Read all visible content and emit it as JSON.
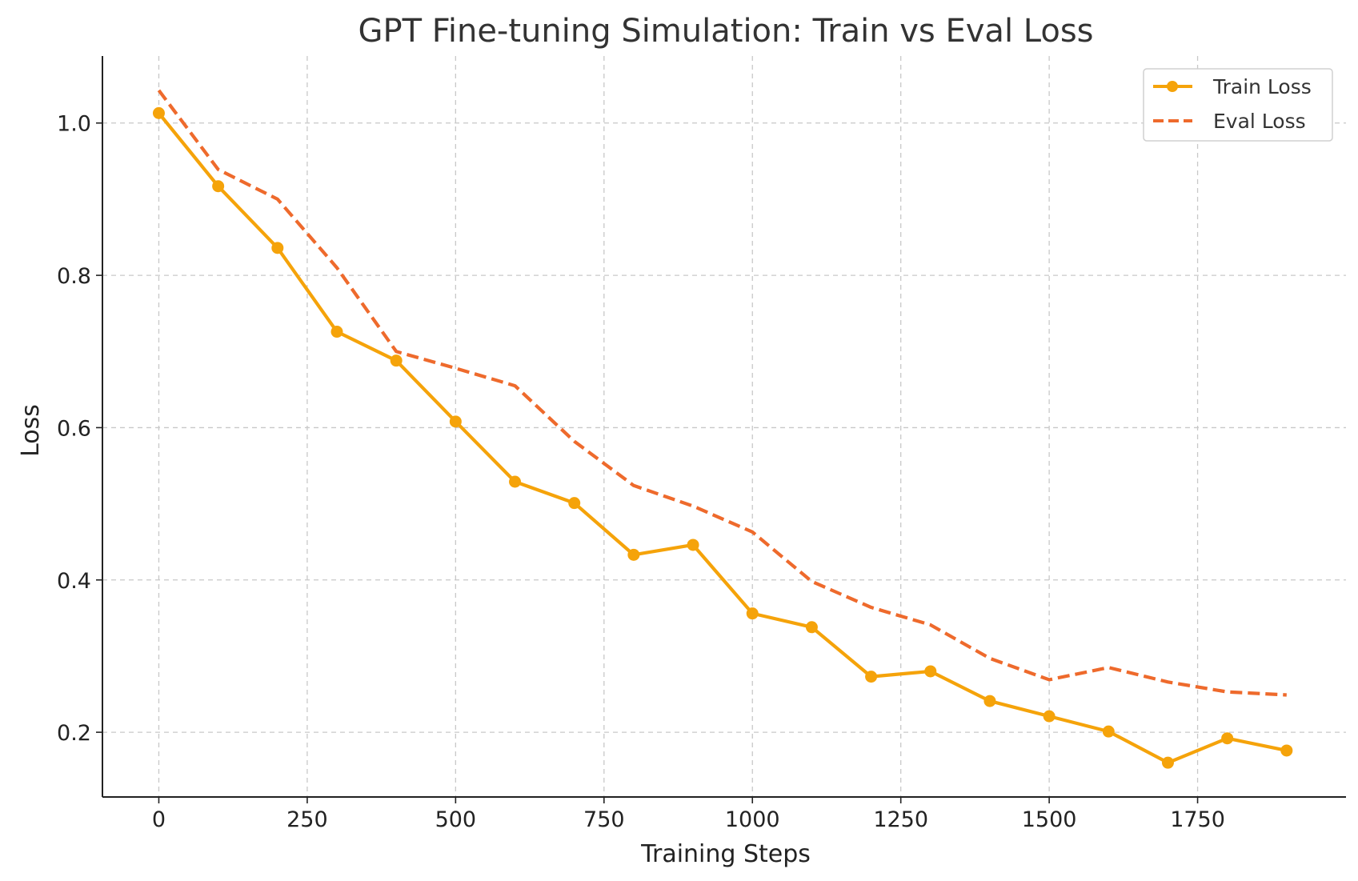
{
  "chart_data": {
    "type": "line",
    "title": "GPT Fine-tuning Simulation: Train vs Eval Loss",
    "xlabel": "Training Steps",
    "ylabel": "Loss",
    "xlim": [
      -95,
      2000
    ],
    "ylim": [
      0.115,
      1.088
    ],
    "grid": true,
    "legend_position": "top-right",
    "x_ticks": [
      0,
      250,
      500,
      750,
      1000,
      1250,
      1500,
      1750
    ],
    "y_ticks": [
      0.2,
      0.4,
      0.6,
      0.8,
      1.0
    ],
    "x": [
      0,
      100,
      200,
      300,
      400,
      500,
      600,
      700,
      800,
      900,
      1000,
      1100,
      1200,
      1300,
      1400,
      1500,
      1600,
      1700,
      1800,
      1900
    ],
    "series": [
      {
        "name": "Train Loss",
        "color": "#f5a30a",
        "style": "solid",
        "marker": "circle",
        "values": [
          1.013,
          0.917,
          0.836,
          0.726,
          0.688,
          0.608,
          0.529,
          0.501,
          0.433,
          0.446,
          0.356,
          0.338,
          0.273,
          0.28,
          0.241,
          0.221,
          0.201,
          0.16,
          0.192,
          0.176
        ]
      },
      {
        "name": "Eval Loss",
        "color": "#ee6a2c",
        "style": "dashed",
        "marker": "none",
        "values": [
          1.043,
          0.939,
          0.9,
          0.81,
          0.7,
          0.678,
          0.655,
          0.582,
          0.524,
          0.497,
          0.463,
          0.398,
          0.364,
          0.341,
          0.297,
          0.269,
          0.285,
          0.266,
          0.253,
          0.249
        ]
      }
    ]
  }
}
